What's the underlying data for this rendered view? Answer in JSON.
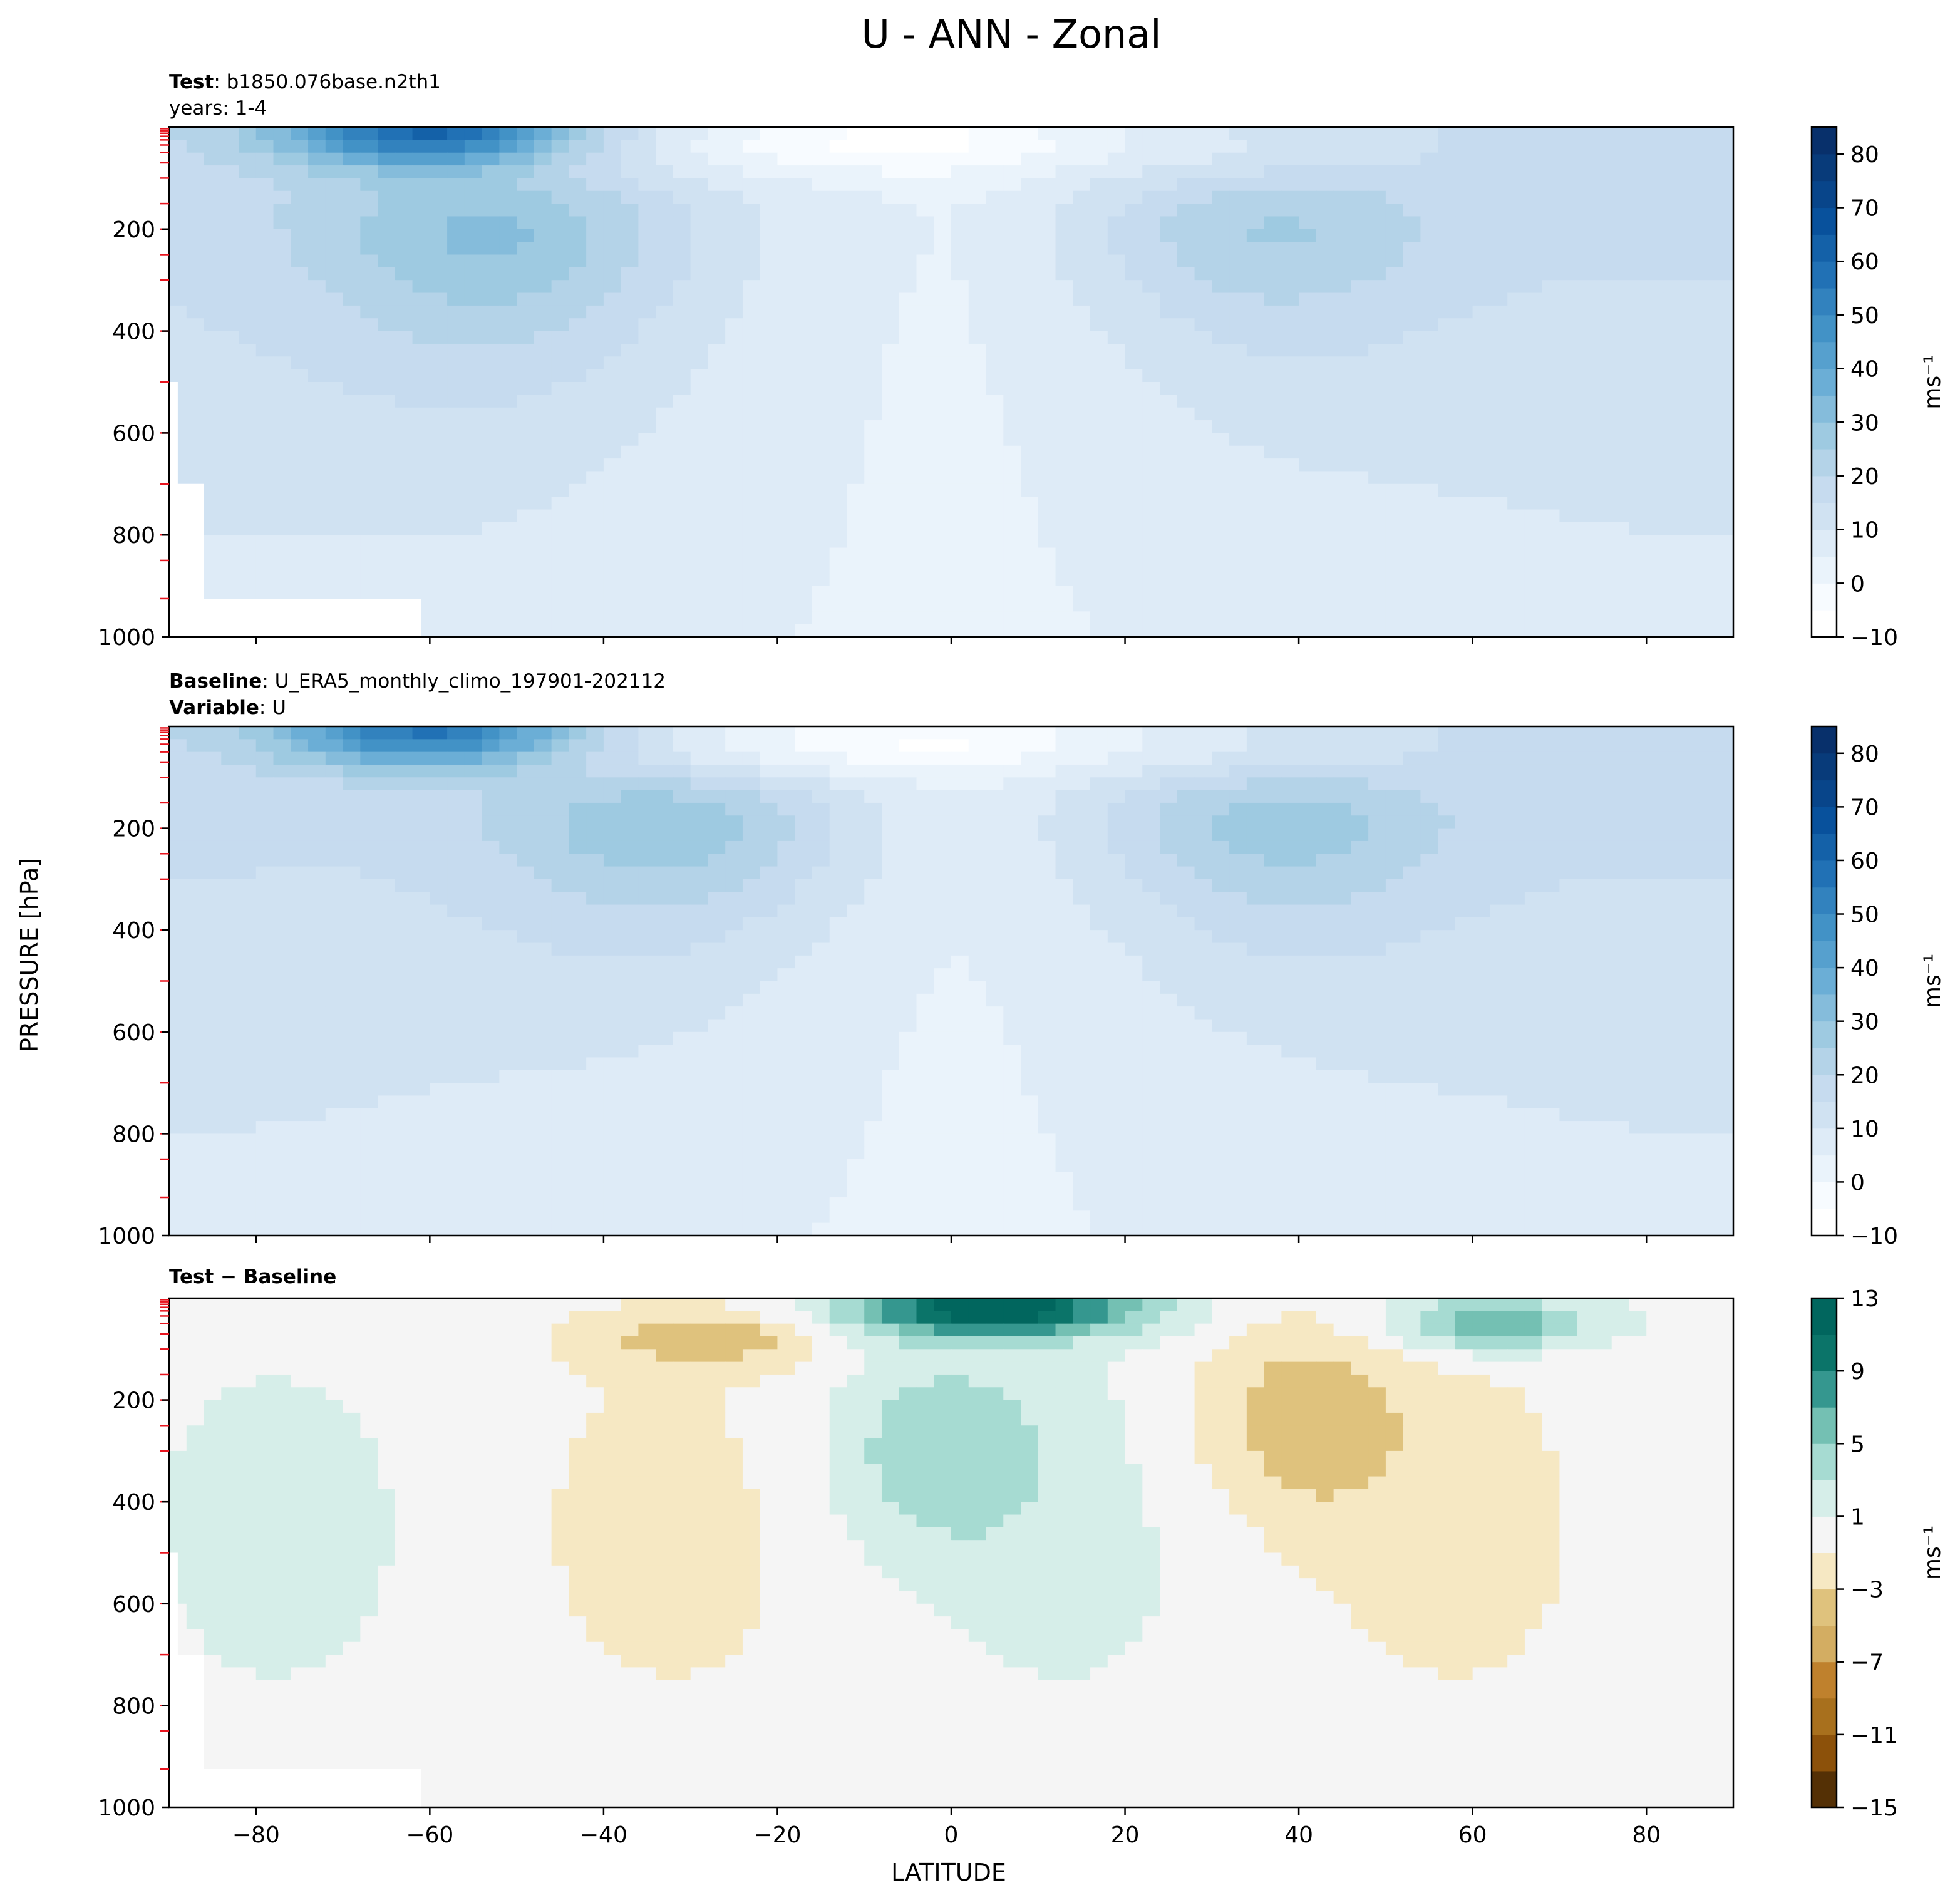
{
  "figure": {
    "title": "U - ANN - Zonal",
    "xlabel": "LATITUDE",
    "ylabel": "PRESSURE [hPa]"
  },
  "chart_data": [
    {
      "type": "heatmap",
      "panel": "test",
      "label_bold_1": "Test",
      "label_text_1": ": b1850.076base.n2th1",
      "label_text_2": "years: 1-4",
      "x_ticks": [
        -80,
        -60,
        -40,
        -20,
        0,
        20,
        40,
        60,
        80
      ],
      "y_ticks": [
        200,
        400,
        600,
        800,
        1000
      ],
      "xlim": [
        -90,
        90
      ],
      "ylim": [
        1000,
        0
      ],
      "colorbar": {
        "ticks": [
          -10,
          0,
          10,
          20,
          30,
          40,
          50,
          60,
          70,
          80
        ],
        "levels": [
          -10,
          -5,
          0,
          5,
          10,
          15,
          20,
          25,
          30,
          35,
          40,
          45,
          50,
          55,
          60,
          65,
          70,
          75,
          80,
          85
        ],
        "label": "ms⁻¹",
        "colors": [
          "#ffffff",
          "#f7fbff",
          "#eaf3fb",
          "#deebf7",
          "#d0e2f2",
          "#c6dbef",
          "#b4d3e8",
          "#9ecae1",
          "#85bcdb",
          "#6baed6",
          "#56a0ce",
          "#4292c6",
          "#3282be",
          "#2171b5",
          "#1461a8",
          "#08519c",
          "#08458a",
          "#083b7a",
          "#08306b"
        ]
      },
      "features": [
        {
          "kind": "jet",
          "lat": -52,
          "p": 220,
          "value": 32
        },
        {
          "kind": "jet",
          "lat": 35,
          "p": 210,
          "value": 29
        },
        {
          "kind": "stratospheric_jet",
          "lat": -60,
          "p": 10,
          "value": 45
        },
        {
          "kind": "easterlies",
          "lat": -10,
          "p": 30,
          "value": -8
        }
      ]
    },
    {
      "type": "heatmap",
      "panel": "baseline",
      "label_bold_1": "Baseline",
      "label_text_1": ": U_ERA5_monthly_climo_197901-202112",
      "label_bold_2": "Variable",
      "label_text_2": ": U",
      "x_ticks": [
        -80,
        -60,
        -40,
        -20,
        0,
        20,
        40,
        60,
        80
      ],
      "y_ticks": [
        200,
        400,
        600,
        800,
        1000
      ],
      "xlim": [
        -90,
        90
      ],
      "ylim": [
        1000,
        0
      ],
      "colorbar": {
        "ticks": [
          -10,
          0,
          10,
          20,
          30,
          40,
          50,
          60,
          70,
          80
        ],
        "levels": [
          -10,
          -5,
          0,
          5,
          10,
          15,
          20,
          25,
          30,
          35,
          40,
          45,
          50,
          55,
          60,
          65,
          70,
          75,
          80,
          85
        ],
        "label": "ms⁻¹",
        "colors": [
          "#ffffff",
          "#f7fbff",
          "#eaf3fb",
          "#deebf7",
          "#d0e2f2",
          "#c6dbef",
          "#b4d3e8",
          "#9ecae1",
          "#85bcdb",
          "#6baed6",
          "#56a0ce",
          "#4292c6",
          "#3282be",
          "#2171b5",
          "#1461a8",
          "#08519c",
          "#08458a",
          "#083b7a",
          "#08306b"
        ]
      },
      "features": [
        {
          "kind": "jet",
          "lat": -32,
          "p": 200,
          "value": 33
        },
        {
          "kind": "jet",
          "lat": 36,
          "p": 200,
          "value": 31
        },
        {
          "kind": "stratospheric_jet",
          "lat": -60,
          "p": 10,
          "value": 40
        },
        {
          "kind": "easterlies",
          "lat": -5,
          "p": 30,
          "value": -6
        }
      ]
    },
    {
      "type": "heatmap",
      "panel": "difference",
      "label_bold_1": "Test − Baseline",
      "x_ticks": [
        -80,
        -60,
        -40,
        -20,
        0,
        20,
        40,
        60,
        80
      ],
      "y_ticks": [
        200,
        400,
        600,
        800,
        1000
      ],
      "xlim": [
        -90,
        90
      ],
      "ylim": [
        1000,
        0
      ],
      "colorbar": {
        "ticks": [
          -15,
          -11,
          -7,
          -3,
          1,
          5,
          9,
          13
        ],
        "levels": [
          -15,
          -13,
          -11,
          -9,
          -7,
          -5,
          -3,
          -1,
          1,
          3,
          5,
          7,
          9,
          11,
          13
        ],
        "label": "ms⁻¹",
        "colors": [
          "#543005",
          "#8c510a",
          "#a8701d",
          "#bf812d",
          "#d3ad62",
          "#dfc27d",
          "#f6e8c3",
          "#f5f5f5",
          "#d6eee9",
          "#a6dbd2",
          "#74c0b3",
          "#35978f",
          "#0b7469",
          "#01665e"
        ]
      },
      "features": [
        {
          "kind": "positive",
          "lat": 5,
          "p": 20,
          "value": 12
        },
        {
          "kind": "positive",
          "lat": 62,
          "p": 50,
          "value": 7
        },
        {
          "kind": "positive",
          "lat": -2,
          "p": 300,
          "value": 4
        },
        {
          "kind": "negative",
          "lat": -28,
          "p": 80,
          "value": -4
        },
        {
          "kind": "negative",
          "lat": 40,
          "p": 240,
          "value": -4
        }
      ]
    }
  ]
}
